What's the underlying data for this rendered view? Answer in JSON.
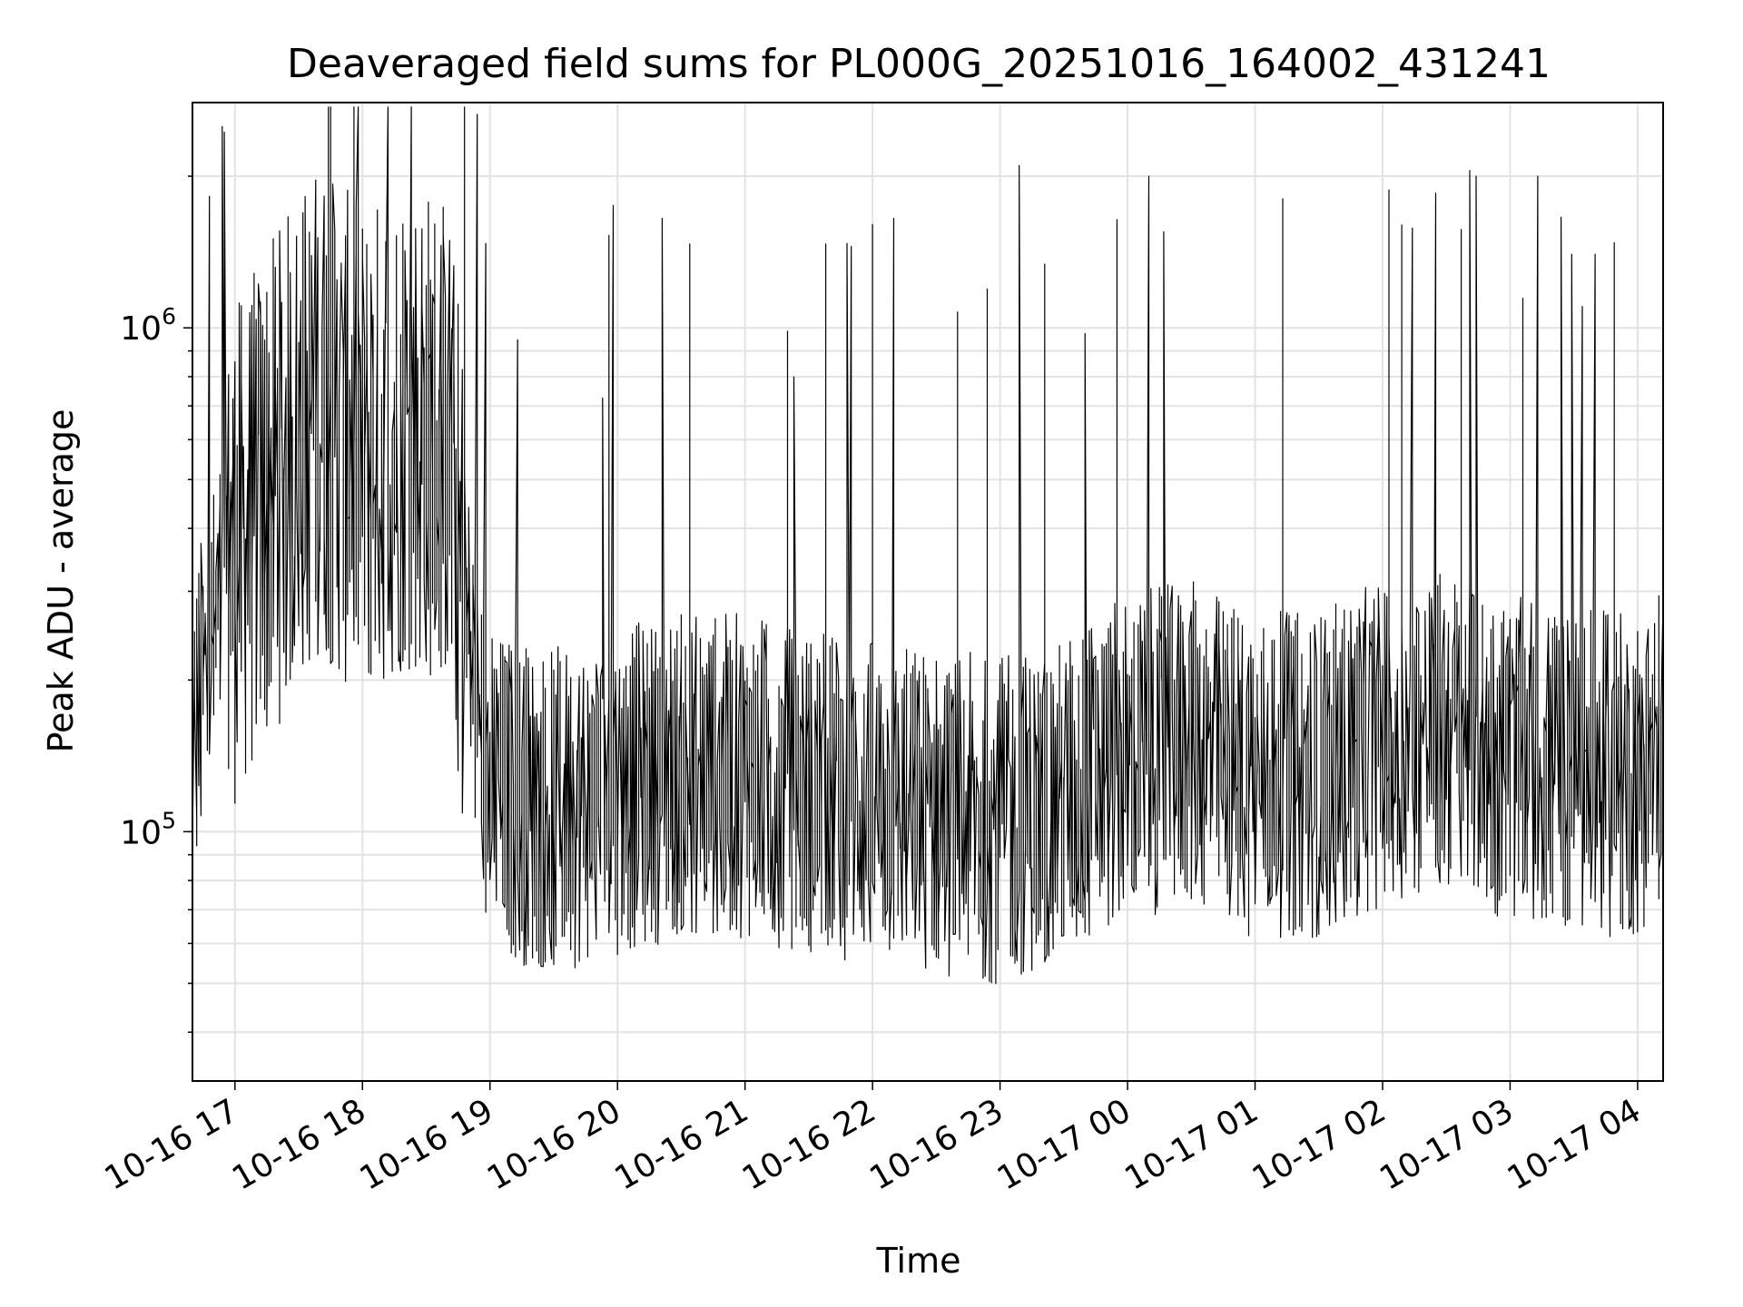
{
  "chart_data": {
    "type": "line",
    "title": "Deaveraged field sums for PL000G_20251016_164002_431241",
    "xlabel": "Time",
    "ylabel": "Peak ADU - average",
    "y_scale": "log",
    "ylim": [
      32000,
      2800000
    ],
    "xlim": [
      "2025-10-16 16:40",
      "2025-10-17 04:12"
    ],
    "grid": true,
    "line_color": "#000000",
    "x_ticks": [
      {
        "value": "2025-10-16 17:00",
        "label": "10-16 17"
      },
      {
        "value": "2025-10-16 18:00",
        "label": "10-16 18"
      },
      {
        "value": "2025-10-16 19:00",
        "label": "10-16 19"
      },
      {
        "value": "2025-10-16 20:00",
        "label": "10-16 20"
      },
      {
        "value": "2025-10-16 21:00",
        "label": "10-16 21"
      },
      {
        "value": "2025-10-16 22:00",
        "label": "10-16 22"
      },
      {
        "value": "2025-10-16 23:00",
        "label": "10-16 23"
      },
      {
        "value": "2025-10-17 00:00",
        "label": "10-17 00"
      },
      {
        "value": "2025-10-17 01:00",
        "label": "10-17 01"
      },
      {
        "value": "2025-10-17 02:00",
        "label": "10-17 02"
      },
      {
        "value": "2025-10-17 03:00",
        "label": "10-17 03"
      },
      {
        "value": "2025-10-17 04:00",
        "label": "10-17 04"
      }
    ],
    "y_ticks": [
      {
        "value": 100000,
        "base": "10",
        "exp": "5"
      },
      {
        "value": 1000000,
        "base": "10",
        "exp": "6"
      }
    ],
    "series": [
      {
        "x": [
          "2025-10-16 16:40",
          "2025-10-16 17:00",
          "2025-10-16 17:20",
          "2025-10-16 17:40",
          "2025-10-16 18:00",
          "2025-10-16 18:20",
          "2025-10-16 18:40",
          "2025-10-16 18:50",
          "2025-10-16 19:00",
          "2025-10-16 19:30",
          "2025-10-16 20:00",
          "2025-10-16 20:30",
          "2025-10-16 21:00",
          "2025-10-16 21:30",
          "2025-10-16 22:00",
          "2025-10-16 22:30",
          "2025-10-16 23:00",
          "2025-10-16 23:30",
          "2025-10-17 00:00",
          "2025-10-17 00:30",
          "2025-10-17 01:00",
          "2025-10-17 01:30",
          "2025-10-17 02:00",
          "2025-10-17 02:30",
          "2025-10-17 03:00",
          "2025-10-17 03:30",
          "2025-10-17 04:00",
          "2025-10-17 04:12"
        ],
        "y": [
          150000,
          350000,
          500000,
          700000,
          550000,
          650000,
          600000,
          250000,
          120000,
          110000,
          120000,
          130000,
          130000,
          120000,
          115000,
          110000,
          105000,
          115000,
          140000,
          150000,
          130000,
          130000,
          150000,
          160000,
          140000,
          130000,
          130000,
          150000
        ],
        "spikes": [
          {
            "x": "2025-10-16 19:58",
            "y": 1750000
          },
          {
            "x": "2025-10-16 20:22",
            "y": 1650000
          },
          {
            "x": "2025-10-16 21:50",
            "y": 1450000
          },
          {
            "x": "2025-10-16 22:10",
            "y": 1650000
          },
          {
            "x": "2025-10-16 23:10",
            "y": 2100000
          },
          {
            "x": "2025-10-17 00:10",
            "y": 2000000
          },
          {
            "x": "2025-10-17 02:25",
            "y": 1850000
          },
          {
            "x": "2025-10-17 02:45",
            "y": 2000000
          },
          {
            "x": "2025-10-17 03:30",
            "y": 1400000
          },
          {
            "x": "2025-10-17 03:40",
            "y": 1400000
          }
        ]
      }
    ]
  }
}
